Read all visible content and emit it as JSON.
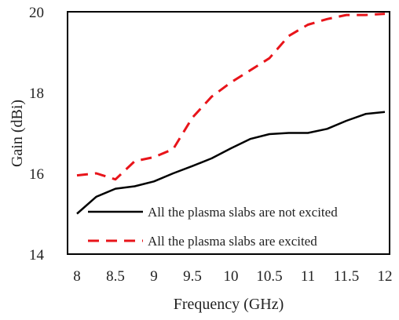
{
  "chart_data": {
    "type": "line",
    "xlabel": "Frequency (GHz)",
    "ylabel": "Gain (dBi)",
    "xlim": [
      8,
      12
    ],
    "ylim": [
      14,
      20
    ],
    "xticks": [
      8,
      8.5,
      9,
      9.5,
      10,
      10.5,
      11,
      11.5,
      12
    ],
    "xtick_labels": [
      "8",
      "8.5",
      "9",
      "9.5",
      "10",
      "10.5",
      "11",
      "11.5",
      "12"
    ],
    "yticks": [
      14,
      16,
      18,
      20
    ],
    "ytick_labels": [
      "14",
      "16",
      "18",
      "20"
    ],
    "grid": false,
    "legend_position": "bottom-right",
    "series": [
      {
        "name": "All the plasma slabs are not excited",
        "color": "#000000",
        "dash": "solid",
        "x": [
          8,
          8.25,
          8.5,
          8.75,
          9,
          9.25,
          9.5,
          9.75,
          10,
          10.25,
          10.5,
          10.75,
          11,
          11.25,
          11.5,
          11.75,
          12
        ],
        "y": [
          15.0,
          15.42,
          15.62,
          15.68,
          15.8,
          16.0,
          16.18,
          16.37,
          16.62,
          16.85,
          16.97,
          17.0,
          17.0,
          17.1,
          17.3,
          17.47,
          17.52
        ]
      },
      {
        "name": "All the plasma slabs are excited",
        "color": "#e8141a",
        "dash": "dashed",
        "x": [
          8,
          8.25,
          8.5,
          8.75,
          9,
          9.25,
          9.5,
          9.75,
          10,
          10.25,
          10.5,
          10.75,
          11,
          11.25,
          11.5,
          11.75,
          12
        ],
        "y": [
          15.95,
          16.0,
          15.85,
          16.3,
          16.4,
          16.6,
          17.38,
          17.9,
          18.25,
          18.55,
          18.85,
          19.4,
          19.68,
          19.82,
          19.92,
          19.92,
          19.95
        ]
      }
    ]
  }
}
